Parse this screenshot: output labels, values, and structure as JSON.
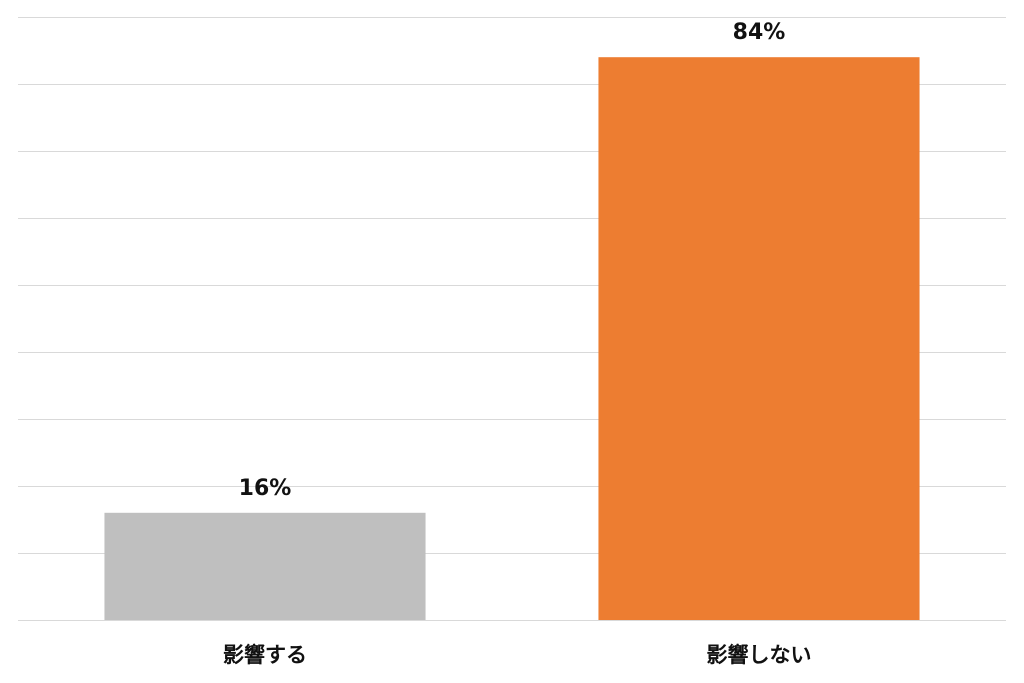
{
  "chart_data": {
    "type": "bar",
    "categories": [
      "影響する",
      "影響しない"
    ],
    "values": [
      16,
      84
    ],
    "value_labels": [
      "16%",
      "84%"
    ],
    "colors": [
      "#bfbfbf",
      "#ed7d31"
    ],
    "ylim": [
      0,
      90
    ],
    "grid": true,
    "gridline_color": "#d9d9d9"
  }
}
